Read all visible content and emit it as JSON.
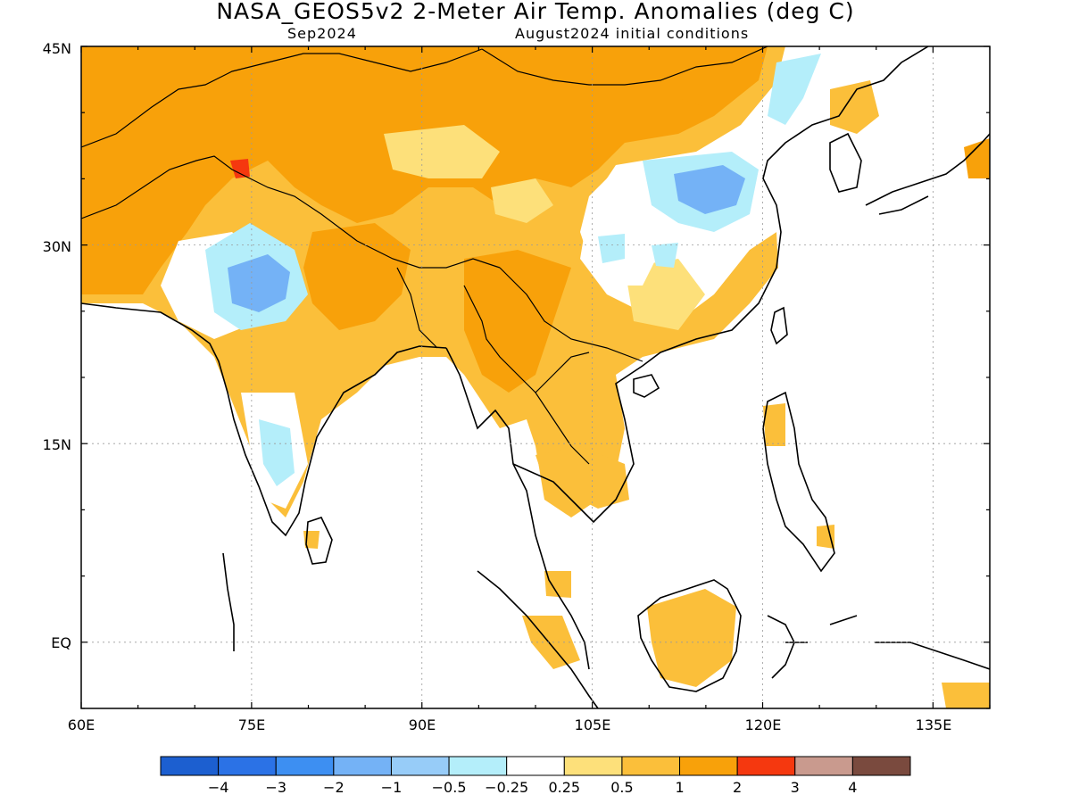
{
  "header": {
    "title": "NASA_GEOS5v2 2-Meter Air Temp. Anomalies (deg C)",
    "valid_label": "Sep2024",
    "init_label": "August2024 initial conditions"
  },
  "map": {
    "lon_labels": [
      "60E",
      "75E",
      "90E",
      "105E",
      "120E",
      "135E"
    ],
    "lat_labels": [
      "45N",
      "30N",
      "15N",
      "EQ"
    ],
    "lon_range": [
      60,
      140
    ],
    "lat_range": [
      -5,
      45
    ],
    "field_description": "2-meter air temperature anomaly"
  },
  "colorbar": {
    "colors": [
      "#1c5fd0",
      "#2b72e6",
      "#3d8ff2",
      "#74b2f6",
      "#97ccf8",
      "#b4eefa",
      "#ffffff",
      "#fde07a",
      "#fbbf3a",
      "#f8a10a",
      "#f5380f",
      "#c99a8e",
      "#7a4a3e"
    ],
    "tick_labels": [
      "-4",
      "-3",
      "-2",
      "-1",
      "-0.5",
      "-0.25",
      "0.25",
      "0.5",
      "1",
      "2",
      "3",
      "4"
    ]
  }
}
